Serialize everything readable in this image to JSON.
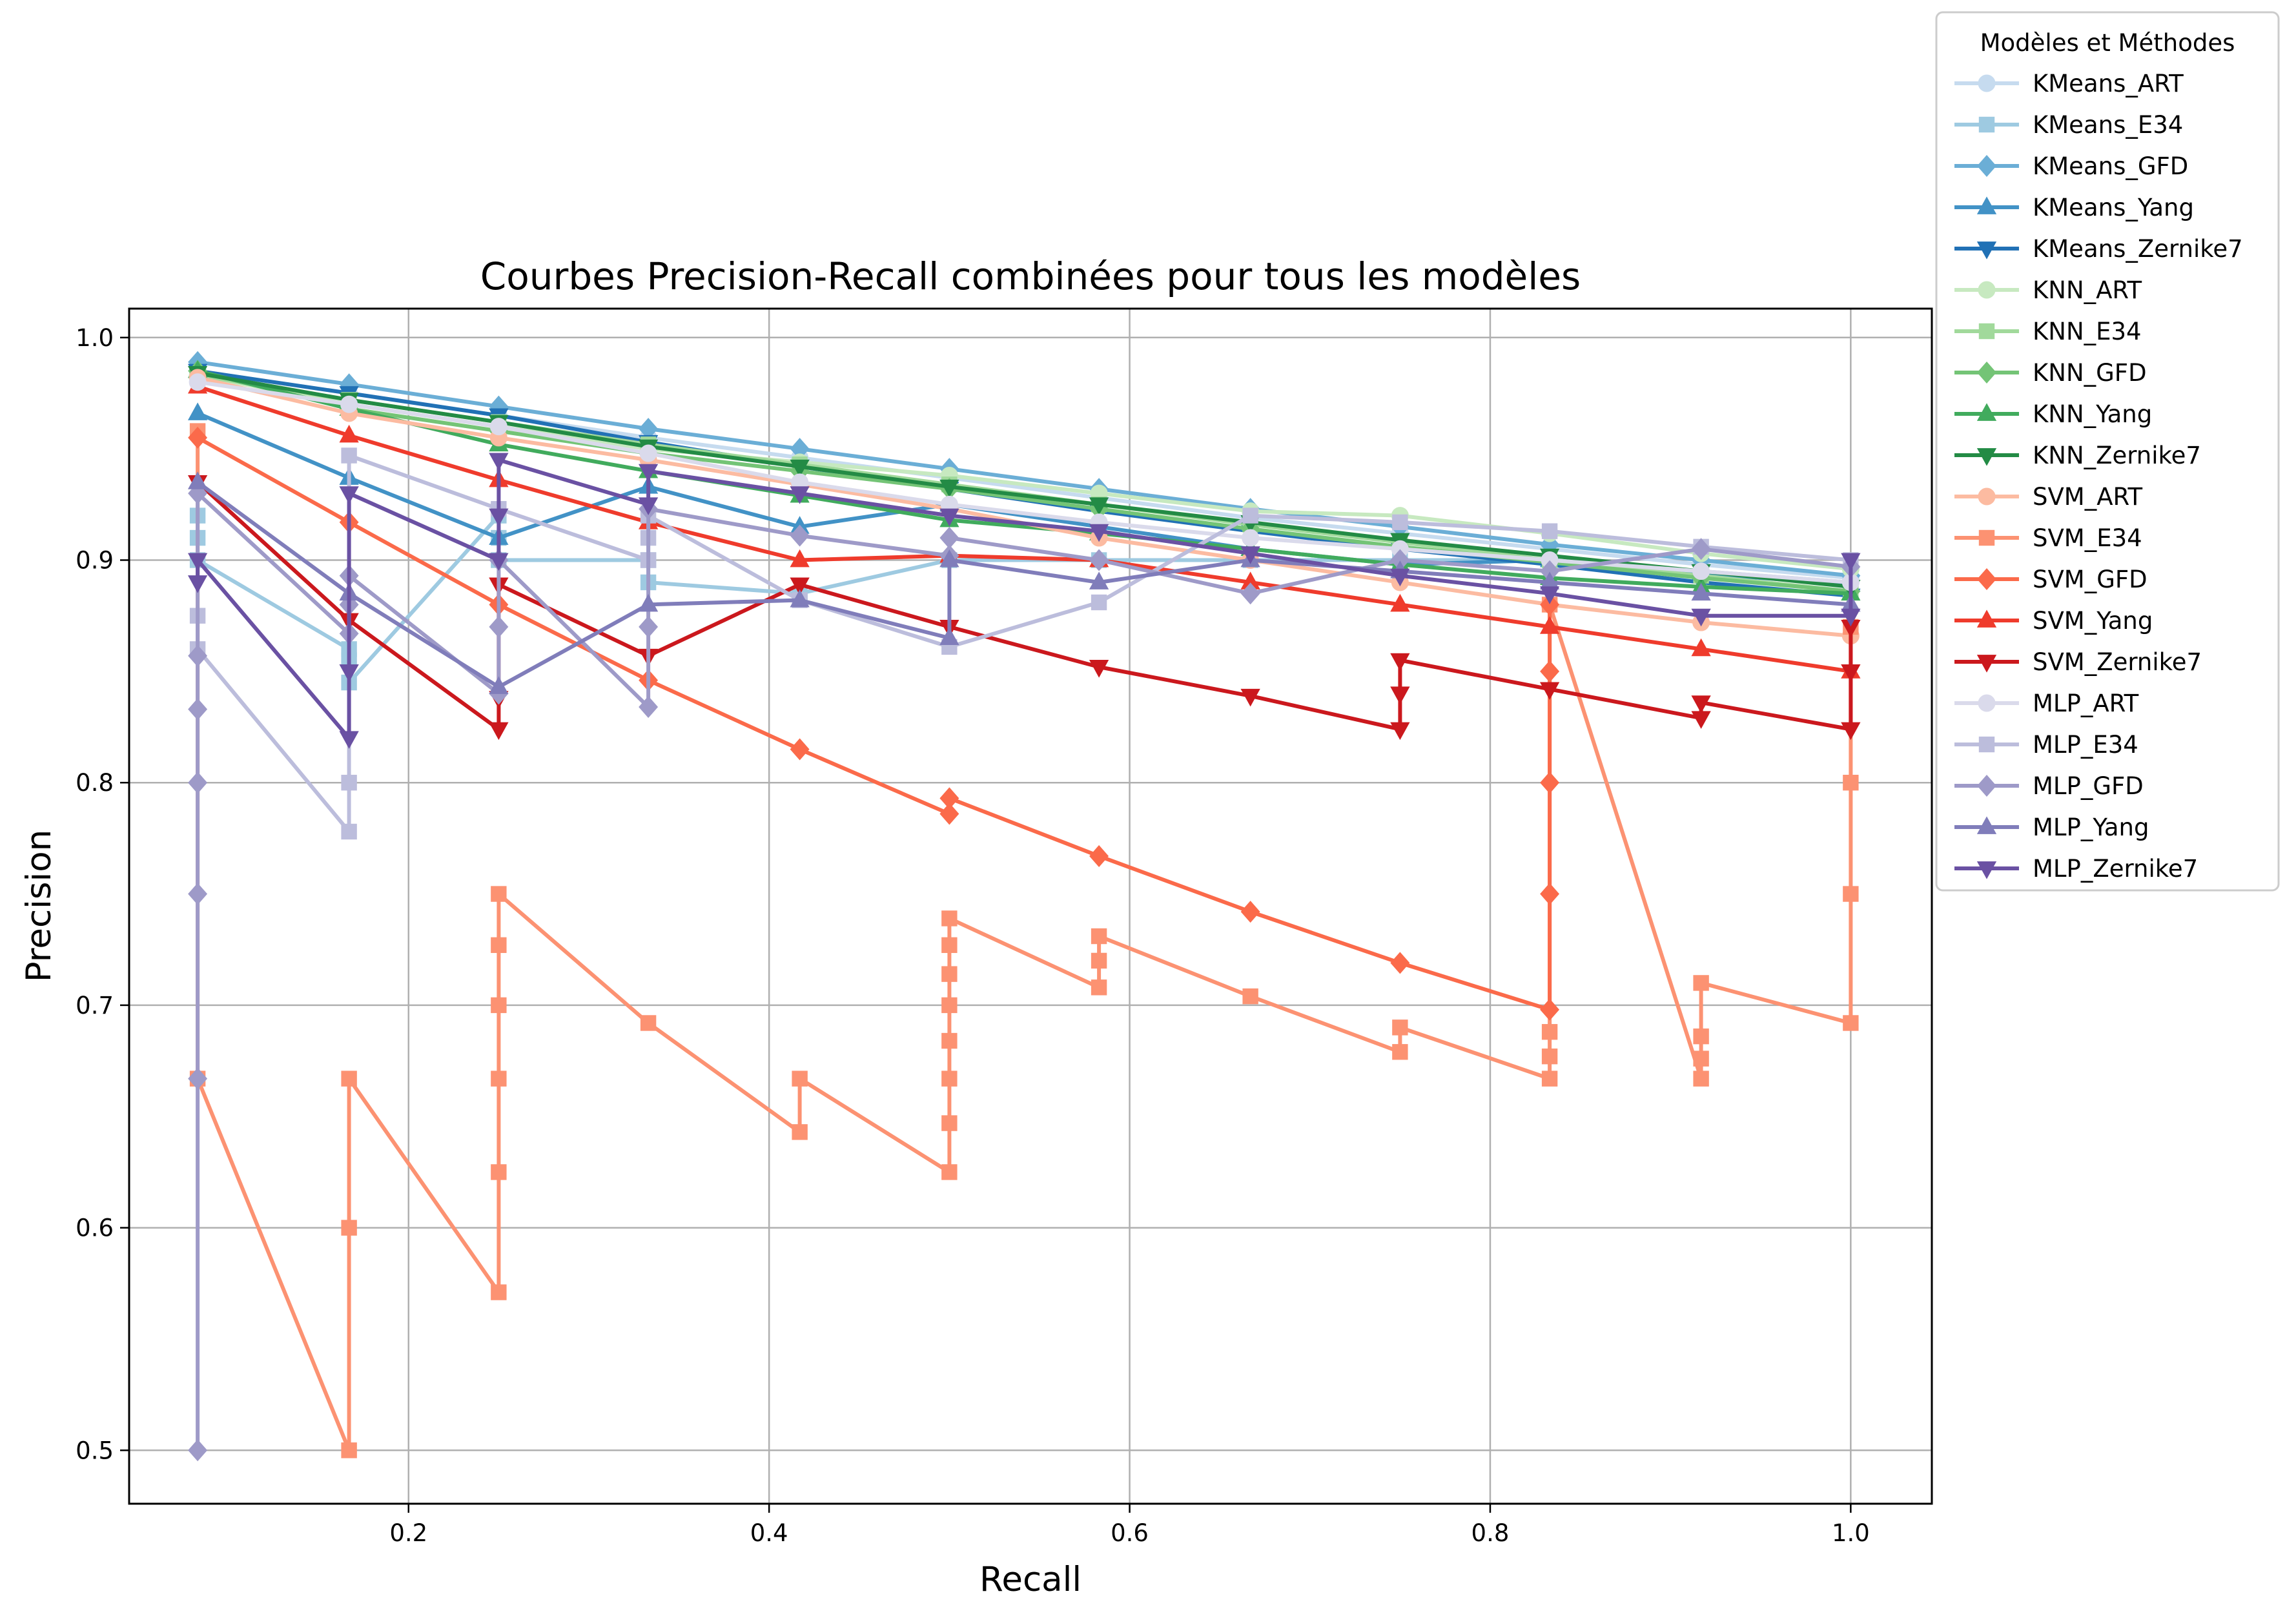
{
  "chart_data": {
    "type": "line",
    "title": "Courbes Precision-Recall combinées pour tous les modèles",
    "xlabel": "Recall",
    "ylabel": "Precision",
    "xlim": [
      0.045,
      1.045
    ],
    "ylim": [
      0.476,
      1.013
    ],
    "xticks": [
      0.2,
      0.4,
      0.6,
      0.8,
      1.0
    ],
    "xtick_labels": [
      "0.2",
      "0.4",
      "0.6",
      "0.8",
      "1.0"
    ],
    "yticks": [
      0.5,
      0.6,
      0.7,
      0.8,
      0.9,
      1.0
    ],
    "ytick_labels": [
      "0.5",
      "0.6",
      "0.7",
      "0.8",
      "0.9",
      "1.0"
    ],
    "grid": true,
    "legend": {
      "title": "Modèles et Méthodes",
      "placement": "outside-top-right"
    },
    "series": [
      {
        "name": "KMeans_ART",
        "color": "#c6dbef",
        "marker": "circle",
        "x": [
          0.083,
          0.167,
          0.25,
          0.333,
          0.417,
          0.5,
          0.583,
          0.667,
          0.75,
          0.833,
          0.917,
          1.0
        ],
        "y": [
          0.985,
          0.975,
          0.965,
          0.955,
          0.946,
          0.937,
          0.928,
          0.919,
          0.912,
          0.905,
          0.898,
          0.892
        ]
      },
      {
        "name": "KMeans_E34",
        "color": "#9ecae1",
        "marker": "square",
        "x": [
          0.083,
          0.083,
          0.083,
          0.167,
          0.167,
          0.167,
          0.25,
          0.25,
          0.25,
          0.333,
          0.333,
          0.417,
          0.5,
          0.583,
          0.667,
          0.75,
          0.833,
          0.917,
          1.0
        ],
        "y": [
          0.92,
          0.91,
          0.9,
          0.86,
          0.855,
          0.845,
          0.92,
          0.91,
          0.9,
          0.9,
          0.89,
          0.885,
          0.9,
          0.9,
          0.9,
          0.9,
          0.9,
          0.895,
          0.89
        ]
      },
      {
        "name": "KMeans_GFD",
        "color": "#6baed6",
        "marker": "diamond",
        "x": [
          0.083,
          0.167,
          0.25,
          0.333,
          0.417,
          0.5,
          0.583,
          0.667,
          0.75,
          0.833,
          0.917,
          1.0
        ],
        "y": [
          0.989,
          0.979,
          0.969,
          0.959,
          0.95,
          0.941,
          0.932,
          0.923,
          0.915,
          0.907,
          0.9,
          0.893
        ]
      },
      {
        "name": "KMeans_Yang",
        "color": "#4292c6",
        "marker": "triangle-up",
        "x": [
          0.083,
          0.167,
          0.25,
          0.333,
          0.417,
          0.5,
          0.583,
          0.667,
          0.75,
          0.833,
          0.917,
          1.0
        ],
        "y": [
          0.966,
          0.937,
          0.91,
          0.933,
          0.915,
          0.925,
          0.915,
          0.905,
          0.898,
          0.9,
          0.894,
          0.889
        ]
      },
      {
        "name": "KMeans_Zernike7",
        "color": "#2171b5",
        "marker": "triangle-down",
        "x": [
          0.083,
          0.167,
          0.25,
          0.333,
          0.417,
          0.5,
          0.583,
          0.667,
          0.75,
          0.833,
          0.917,
          1.0
        ],
        "y": [
          0.985,
          0.975,
          0.965,
          0.953,
          0.942,
          0.932,
          0.922,
          0.913,
          0.905,
          0.898,
          0.89,
          0.884
        ]
      },
      {
        "name": "KNN_ART",
        "color": "#c7e9c0",
        "marker": "circle",
        "x": [
          0.083,
          0.167,
          0.25,
          0.333,
          0.417,
          0.5,
          0.583,
          0.667,
          0.75,
          0.833,
          0.917,
          1.0
        ],
        "y": [
          0.983,
          0.97,
          0.96,
          0.95,
          0.944,
          0.938,
          0.93,
          0.922,
          0.92,
          0.912,
          0.903,
          0.896
        ]
      },
      {
        "name": "KNN_E34",
        "color": "#a1d99b",
        "marker": "square",
        "x": [
          0.083,
          0.167,
          0.25,
          0.333,
          0.417,
          0.5,
          0.583,
          0.667,
          0.75,
          0.833,
          0.917,
          1.0
        ],
        "y": [
          0.983,
          0.972,
          0.962,
          0.952,
          0.943,
          0.934,
          0.925,
          0.916,
          0.908,
          0.9,
          0.893,
          0.886
        ]
      },
      {
        "name": "KNN_GFD",
        "color": "#74c476",
        "marker": "diamond",
        "x": [
          0.083,
          0.167,
          0.25,
          0.333,
          0.417,
          0.5,
          0.583,
          0.667,
          0.75,
          0.833,
          0.917,
          1.0
        ],
        "y": [
          0.985,
          0.968,
          0.958,
          0.948,
          0.94,
          0.932,
          0.923,
          0.914,
          0.906,
          0.899,
          0.892,
          0.886
        ]
      },
      {
        "name": "KNN_Yang",
        "color": "#41ab5d",
        "marker": "triangle-up",
        "x": [
          0.083,
          0.167,
          0.25,
          0.333,
          0.417,
          0.5,
          0.583,
          0.667,
          0.75,
          0.833,
          0.917,
          1.0
        ],
        "y": [
          0.985,
          0.968,
          0.952,
          0.94,
          0.929,
          0.918,
          0.912,
          0.905,
          0.898,
          0.892,
          0.888,
          0.885
        ]
      },
      {
        "name": "KNN_Zernike7",
        "color": "#238b45",
        "marker": "triangle-down",
        "x": [
          0.083,
          0.167,
          0.25,
          0.333,
          0.417,
          0.5,
          0.583,
          0.667,
          0.75,
          0.833,
          0.917,
          1.0
        ],
        "y": [
          0.984,
          0.972,
          0.962,
          0.951,
          0.942,
          0.933,
          0.925,
          0.917,
          0.909,
          0.902,
          0.895,
          0.888
        ]
      },
      {
        "name": "SVM_ART",
        "color": "#fcbba1",
        "marker": "circle",
        "x": [
          0.083,
          0.167,
          0.25,
          0.333,
          0.417,
          0.5,
          0.583,
          0.667,
          0.75,
          0.833,
          0.917,
          1.0
        ],
        "y": [
          0.982,
          0.966,
          0.955,
          0.945,
          0.934,
          0.923,
          0.91,
          0.9,
          0.89,
          0.88,
          0.872,
          0.866
        ]
      },
      {
        "name": "SVM_E34",
        "color": "#fc9272",
        "marker": "square",
        "x": [
          0.083,
          0.083,
          0.167,
          0.167,
          0.167,
          0.25,
          0.25,
          0.25,
          0.25,
          0.25,
          0.25,
          0.333,
          0.417,
          0.417,
          0.5,
          0.5,
          0.5,
          0.5,
          0.5,
          0.5,
          0.5,
          0.5,
          0.583,
          0.583,
          0.583,
          0.667,
          0.75,
          0.75,
          0.833,
          0.833,
          0.833,
          0.833,
          0.917,
          0.917,
          0.917,
          0.917,
          1.0,
          1.0,
          1.0,
          1.0
        ],
        "y": [
          0.958,
          0.667,
          0.5,
          0.6,
          0.667,
          0.571,
          0.625,
          0.667,
          0.7,
          0.727,
          0.75,
          0.692,
          0.643,
          0.667,
          0.625,
          0.647,
          0.667,
          0.684,
          0.7,
          0.714,
          0.727,
          0.739,
          0.708,
          0.72,
          0.731,
          0.704,
          0.679,
          0.69,
          0.667,
          0.677,
          0.688,
          0.88,
          0.667,
          0.676,
          0.686,
          0.71,
          0.692,
          0.75,
          0.8,
          0.87
        ]
      },
      {
        "name": "SVM_GFD",
        "color": "#fb6a4a",
        "marker": "diamond",
        "x": [
          0.083,
          0.167,
          0.25,
          0.333,
          0.417,
          0.5,
          0.5,
          0.583,
          0.667,
          0.75,
          0.833,
          0.833,
          0.833,
          0.833,
          0.833
        ],
        "y": [
          0.955,
          0.917,
          0.88,
          0.846,
          0.815,
          0.786,
          0.793,
          0.767,
          0.742,
          0.719,
          0.698,
          0.75,
          0.8,
          0.85,
          0.88
        ]
      },
      {
        "name": "SVM_Yang",
        "color": "#ef3b2c",
        "marker": "triangle-up",
        "x": [
          0.083,
          0.167,
          0.25,
          0.333,
          0.417,
          0.5,
          0.583,
          0.667,
          0.75,
          0.833,
          0.917,
          1.0
        ],
        "y": [
          0.978,
          0.956,
          0.936,
          0.917,
          0.9,
          0.902,
          0.9,
          0.89,
          0.88,
          0.87,
          0.86,
          0.85
        ]
      },
      {
        "name": "SVM_Zernike7",
        "color": "#cb181d",
        "marker": "triangle-down",
        "x": [
          0.083,
          0.167,
          0.25,
          0.25,
          0.25,
          0.333,
          0.417,
          0.5,
          0.583,
          0.667,
          0.75,
          0.75,
          0.75,
          0.833,
          0.917,
          0.917,
          1.0,
          1.0,
          1.0
        ],
        "y": [
          0.935,
          0.873,
          0.824,
          0.838,
          0.889,
          0.857,
          0.889,
          0.87,
          0.852,
          0.839,
          0.824,
          0.84,
          0.855,
          0.842,
          0.829,
          0.836,
          0.824,
          0.85,
          0.87
        ]
      },
      {
        "name": "MLP_ART",
        "color": "#dadaeb",
        "marker": "circle",
        "x": [
          0.083,
          0.167,
          0.25,
          0.333,
          0.417,
          0.5,
          0.583,
          0.667,
          0.75,
          0.833,
          0.917,
          1.0
        ],
        "y": [
          0.98,
          0.97,
          0.96,
          0.948,
          0.935,
          0.925,
          0.917,
          0.91,
          0.905,
          0.9,
          0.895,
          0.89
        ]
      },
      {
        "name": "MLP_E34",
        "color": "#bcbddc",
        "marker": "square",
        "x": [
          0.083,
          0.083,
          0.167,
          0.167,
          0.167,
          0.25,
          0.333,
          0.333,
          0.333,
          0.417,
          0.5,
          0.583,
          0.667,
          0.75,
          0.833,
          0.917,
          1.0
        ],
        "y": [
          0.875,
          0.86,
          0.778,
          0.8,
          0.947,
          0.923,
          0.9,
          0.91,
          0.92,
          0.882,
          0.861,
          0.881,
          0.92,
          0.917,
          0.913,
          0.906,
          0.9
        ]
      },
      {
        "name": "MLP_GFD",
        "color": "#9e9ac8",
        "marker": "diamond",
        "x": [
          0.083,
          0.083,
          0.083,
          0.083,
          0.083,
          0.083,
          0.083,
          0.167,
          0.167,
          0.167,
          0.25,
          0.25,
          0.25,
          0.333,
          0.333,
          0.333,
          0.417,
          0.5,
          0.5,
          0.583,
          0.667,
          0.75,
          0.833,
          0.917,
          1.0
        ],
        "y": [
          0.5,
          0.667,
          0.75,
          0.8,
          0.833,
          0.857,
          0.93,
          0.867,
          0.88,
          0.893,
          0.84,
          0.87,
          0.9,
          0.834,
          0.87,
          0.923,
          0.911,
          0.902,
          0.91,
          0.9,
          0.885,
          0.9,
          0.895,
          0.905,
          0.897
        ]
      },
      {
        "name": "MLP_Yang",
        "color": "#807dba",
        "marker": "triangle-up",
        "x": [
          0.083,
          0.167,
          0.25,
          0.333,
          0.417,
          0.5,
          0.5,
          0.583,
          0.667,
          0.75,
          0.833,
          0.917,
          1.0
        ],
        "y": [
          0.935,
          0.885,
          0.843,
          0.88,
          0.882,
          0.865,
          0.9,
          0.89,
          0.9,
          0.895,
          0.89,
          0.885,
          0.88
        ]
      },
      {
        "name": "MLP_Zernike7",
        "color": "#6a51a3",
        "marker": "triangle-down",
        "x": [
          0.083,
          0.083,
          0.167,
          0.167,
          0.167,
          0.25,
          0.25,
          0.25,
          0.333,
          0.333,
          0.417,
          0.5,
          0.583,
          0.667,
          0.75,
          0.833,
          0.917,
          1.0,
          1.0
        ],
        "y": [
          0.89,
          0.9,
          0.82,
          0.85,
          0.93,
          0.9,
          0.92,
          0.945,
          0.925,
          0.94,
          0.93,
          0.92,
          0.913,
          0.903,
          0.893,
          0.885,
          0.875,
          0.875,
          0.9
        ]
      }
    ]
  }
}
